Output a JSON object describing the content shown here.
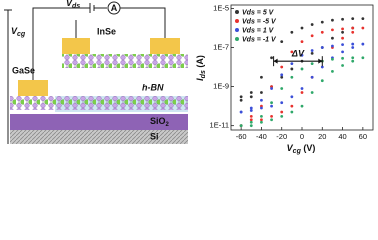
{
  "schematic": {
    "vds": {
      "main": "V",
      "sub": "ds"
    },
    "ammeter": "A",
    "vcg": {
      "main": "V",
      "sub": "cg"
    },
    "top_flake": "InSe",
    "bottom_flake": "GaSe",
    "dielectric": "h-BN",
    "oxide": {
      "main": "SiO",
      "sub": "2"
    },
    "substrate": "Si"
  },
  "chart_data": {
    "type": "scatter",
    "xlabel": {
      "main": "V",
      "sub": "cg",
      "unit": " (V)"
    },
    "ylabel": {
      "main": "I",
      "sub": "ds",
      "unit": " (A)"
    },
    "x": [
      -60,
      -50,
      -40,
      -30,
      -20,
      -10,
      0,
      10,
      20,
      30,
      40,
      50,
      60,
      50,
      40,
      30,
      20,
      10,
      0,
      -10,
      -20,
      -30,
      -40,
      -50,
      -60
    ],
    "series": [
      {
        "name": "Vds = 5 V",
        "color": "#333333",
        "values": [
          2e-10,
          3e-10,
          5e-10,
          1e-09,
          3e-09,
          8e-09,
          2e-08,
          5e-08,
          1e-07,
          3e-07,
          6e-07,
          1e-06,
          3e-06,
          3e-06,
          2.8e-06,
          2.5e-06,
          2e-06,
          1.5e-06,
          1e-06,
          6e-07,
          2e-07,
          3e-08,
          3e-09,
          5e-10,
          3e-10
        ]
      },
      {
        "name": "Vds = -5 V",
        "color": "#e8322e",
        "values": [
          1e-11,
          2e-11,
          2e-11,
          3e-11,
          5e-11,
          1e-10,
          5e-10,
          3e-09,
          2e-08,
          1e-07,
          3e-07,
          6e-07,
          1e-06,
          1e-06,
          9e-07,
          8e-07,
          6e-07,
          4e-07,
          2e-07,
          6e-08,
          1e-08,
          1e-09,
          1e-10,
          3e-11,
          1e-11
        ]
      },
      {
        "name": "Vds = 1 V",
        "color": "#3b4fd8",
        "values": [
          5e-11,
          6e-11,
          8e-11,
          1e-10,
          1.5e-10,
          3e-10,
          8e-10,
          3e-09,
          1e-08,
          3e-08,
          6e-08,
          1e-07,
          1.5e-07,
          1.5e-07,
          1.4e-07,
          1.2e-07,
          1e-07,
          7e-08,
          4e-08,
          1.5e-08,
          4e-09,
          8e-10,
          2e-10,
          8e-11,
          5e-11
        ]
      },
      {
        "name": "Vds = -1 V",
        "color": "#2fa86a",
        "values": [
          1e-11,
          1e-11,
          1.5e-11,
          2e-11,
          3e-11,
          5e-11,
          1e-10,
          5e-10,
          2e-09,
          6e-09,
          1.2e-08,
          2e-08,
          3e-08,
          3e-08,
          2.8e-08,
          2.5e-08,
          2e-08,
          1.5e-08,
          8e-09,
          3e-09,
          8e-10,
          1.5e-10,
          3e-11,
          1.5e-11,
          1e-11
        ]
      }
    ],
    "xlim": [
      -70,
      70
    ],
    "xticks": [
      -60,
      -40,
      -20,
      0,
      20,
      40,
      60
    ],
    "ylim": [
      6e-12,
      1.5e-05
    ],
    "ylog": true,
    "yticks": [
      {
        "value": 1e-11,
        "label": "1E-11"
      },
      {
        "value": 1e-09,
        "label": "1E-9"
      },
      {
        "value": 1e-07,
        "label": "1E-7"
      },
      {
        "value": 1e-05,
        "label": "1E-5"
      }
    ],
    "legend": "upper left",
    "annotation": {
      "text": "ΔV",
      "x": [
        -28,
        20
      ],
      "y": 2e-08
    }
  }
}
